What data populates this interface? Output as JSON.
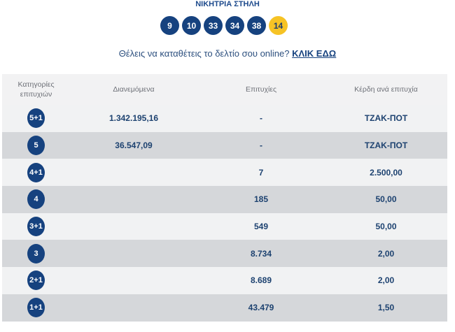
{
  "title": "ΝΙΚΗΤΡΙΑ ΣΤΗΛΗ",
  "balls": [
    "9",
    "10",
    "33",
    "34",
    "38"
  ],
  "bonus_ball": "14",
  "promo": {
    "text": "Θέλεις να καταθέτεις το δελτίο σου online?",
    "link": "ΚΛΙΚ ΕΔΩ"
  },
  "table": {
    "headers": {
      "category_1": "Κατηγορίες",
      "category_2": "επιτυχιών",
      "distributed": "Διανεμόμενα",
      "wins": "Επιτυχίες",
      "prize": "Κέρδη ανά επιτυχία"
    },
    "rows": [
      {
        "cat": "5+1",
        "distributed": "1.342.195,16",
        "wins": "-",
        "prize": "ΤΖΑΚ-ΠΟΤ"
      },
      {
        "cat": "5",
        "distributed": "36.547,09",
        "wins": "-",
        "prize": "ΤΖΑΚ-ΠΟΤ"
      },
      {
        "cat": "4+1",
        "distributed": "",
        "wins": "7",
        "prize": "2.500,00"
      },
      {
        "cat": "4",
        "distributed": "",
        "wins": "185",
        "prize": "50,00"
      },
      {
        "cat": "3+1",
        "distributed": "",
        "wins": "549",
        "prize": "50,00"
      },
      {
        "cat": "3",
        "distributed": "",
        "wins": "8.734",
        "prize": "2,00"
      },
      {
        "cat": "2+1",
        "distributed": "",
        "wins": "8.689",
        "prize": "2,00"
      },
      {
        "cat": "1+1",
        "distributed": "",
        "wins": "43.479",
        "prize": "1,50"
      }
    ]
  }
}
